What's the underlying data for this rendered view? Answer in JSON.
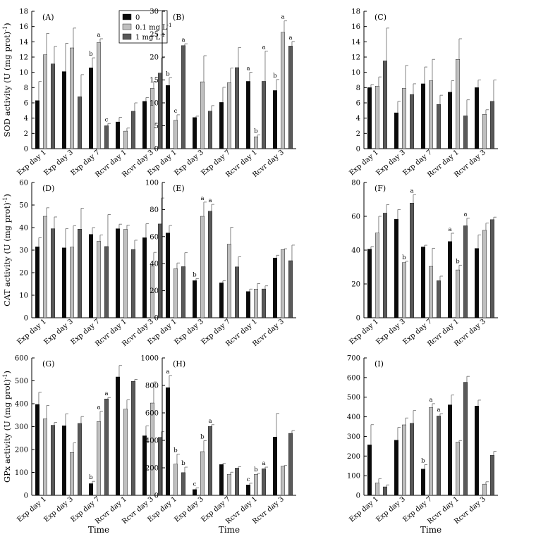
{
  "chart_data": {
    "type": "bar",
    "layout": "3x3 grid",
    "categories": [
      "Exp day 1",
      "Exp day 3",
      "Exp day 7",
      "Rcvr day 1",
      "Rcvr day 3"
    ],
    "x_label": "Time",
    "series": [
      {
        "name": "0",
        "color": "#0a0a0a"
      },
      {
        "name": "0.1 mg L⁻¹",
        "color": "#bfbfbf"
      },
      {
        "name": "1 mg L⁻¹",
        "color": "#595959"
      }
    ],
    "legend": {
      "items": [
        "0",
        "0.1 mg L",
        "1 mg L"
      ],
      "superscript": "-1"
    },
    "y_label_parts": {
      "SOD": {
        "main": "SOD activity (U (mg prot)",
        "sup": "-1",
        "close": ")"
      },
      "CAT": {
        "main": "CAT activity (U (mg prot)",
        "sup": "-1",
        "close": ")"
      },
      "GPx": {
        "main": "GPx activity (U (mg prot)",
        "sup": "-1",
        "close": ")"
      }
    },
    "panels": [
      {
        "label": "(A)",
        "metric": "SOD",
        "ylim": [
          0,
          18
        ],
        "yticks": [
          0,
          2,
          4,
          6,
          8,
          10,
          12,
          14,
          16,
          18
        ],
        "values": [
          [
            6.3,
            12.3,
            11.1
          ],
          [
            10.1,
            13.2,
            6.8
          ],
          [
            10.6,
            13.9,
            3.0
          ],
          [
            3.5,
            2.3,
            4.9
          ],
          [
            6.2,
            7.9,
            9.9
          ]
        ],
        "errors": [
          [
            2.5,
            2.8,
            2.3
          ],
          [
            3.7,
            2.6,
            2.9
          ],
          [
            1.3,
            0.5,
            0.3
          ],
          [
            0.6,
            0.4,
            1.1
          ],
          [
            0.5,
            0.9,
            2.0
          ]
        ],
        "sig": [
          [
            "",
            "",
            ""
          ],
          [
            "",
            "",
            ""
          ],
          [
            "b",
            "a",
            "c"
          ],
          [
            "",
            "",
            ""
          ],
          [
            "",
            "",
            ""
          ]
        ]
      },
      {
        "label": "(B)",
        "metric": "SOD",
        "ylim": [
          0,
          30
        ],
        "yticks": [
          0,
          5,
          10,
          15,
          20,
          25,
          30
        ],
        "values": [
          [
            13.8,
            6.2,
            22.5
          ],
          [
            6.8,
            14.6,
            8.2
          ],
          [
            10.1,
            14.4,
            17.7
          ],
          [
            14.7,
            2.6,
            14.7
          ],
          [
            12.7,
            25.4,
            22.4
          ]
        ],
        "errors": [
          [
            1.7,
            1.2,
            0.4
          ],
          [
            0.3,
            5.7,
            1.2
          ],
          [
            3.3,
            3.2,
            4.4
          ],
          [
            2.0,
            0.4,
            6.6
          ],
          [
            2.4,
            2.5,
            1.0
          ]
        ],
        "sig": [
          [
            "b",
            "c",
            "a"
          ],
          [
            "",
            "",
            ""
          ],
          [
            "",
            "",
            ""
          ],
          [
            "a",
            "b",
            "a"
          ],
          [
            "b",
            "a",
            "a"
          ]
        ]
      },
      {
        "label": "(C)",
        "metric": "SOD",
        "ylim": [
          0,
          18
        ],
        "yticks": [
          0,
          2,
          4,
          6,
          8,
          10,
          12,
          14,
          16,
          18
        ],
        "values": [
          [
            8.0,
            8.2,
            11.5
          ],
          [
            4.7,
            7.9,
            7.1
          ],
          [
            8.5,
            8.9,
            5.8
          ],
          [
            7.4,
            11.7,
            4.3
          ],
          [
            8.0,
            4.5,
            6.2
          ]
        ],
        "errors": [
          [
            0.4,
            1.2,
            4.3
          ],
          [
            1.5,
            3.0,
            1.4
          ],
          [
            2.2,
            2.8,
            1.2
          ],
          [
            1.5,
            2.7,
            2.1
          ],
          [
            1.0,
            0.6,
            2.8
          ]
        ],
        "sig": [
          [
            "",
            "",
            ""
          ],
          [
            "",
            "",
            ""
          ],
          [
            "",
            "",
            ""
          ],
          [
            "",
            "",
            ""
          ],
          [
            "",
            "",
            ""
          ]
        ]
      },
      {
        "label": "(D)",
        "metric": "CAT",
        "ylim": [
          0,
          60
        ],
        "yticks": [
          0,
          10,
          20,
          30,
          40,
          50,
          60
        ],
        "values": [
          [
            31.5,
            45.0,
            39.5
          ],
          [
            31.0,
            31.3,
            39.3
          ],
          [
            37.0,
            33.9,
            31.6
          ],
          [
            39.5,
            39.2,
            30.3
          ],
          [
            35.5,
            23.7,
            41.6
          ]
        ],
        "errors": [
          [
            4.0,
            3.8,
            5.2
          ],
          [
            8.5,
            9.5,
            9.3
          ],
          [
            3.0,
            2.8,
            14.2
          ],
          [
            2.0,
            1.9,
            4.1
          ],
          [
            6.2,
            5.3,
            11.5
          ]
        ],
        "sig": [
          [
            "",
            "",
            ""
          ],
          [
            "",
            "",
            ""
          ],
          [
            "",
            "",
            ""
          ],
          [
            "",
            "",
            ""
          ],
          [
            "",
            "",
            ""
          ]
        ]
      },
      {
        "label": "(E)",
        "metric": "CAT",
        "ylim": [
          0,
          100
        ],
        "yticks": [
          0,
          20,
          40,
          60,
          80,
          100
        ],
        "values": [
          [
            62.7,
            36.2,
            37.8
          ],
          [
            27.5,
            75.0,
            78.8
          ],
          [
            25.8,
            54.4,
            37.6
          ],
          [
            19.4,
            21.2,
            21.3
          ],
          [
            44.2,
            50.4,
            42.2
          ]
        ],
        "errors": [
          [
            5.5,
            4.3,
            10.3
          ],
          [
            1.5,
            10.5,
            5.0
          ],
          [
            1.5,
            12.5,
            7.5
          ],
          [
            1.8,
            4.1,
            2.3
          ],
          [
            2.0,
            0.6,
            11.5
          ]
        ],
        "sig": [
          [
            "",
            "",
            ""
          ],
          [
            "b",
            "a",
            "a"
          ],
          [
            "",
            "",
            ""
          ],
          [
            "",
            "",
            ""
          ],
          [
            "",
            "",
            ""
          ]
        ]
      },
      {
        "label": "(F)",
        "metric": "CAT",
        "ylim": [
          0,
          80
        ],
        "yticks": [
          0,
          20,
          40,
          60,
          80
        ],
        "values": [
          [
            40.6,
            50.1,
            61.9
          ],
          [
            58.3,
            32.6,
            67.8
          ],
          [
            41.9,
            30.4,
            21.9
          ],
          [
            45.1,
            28.3,
            54.4
          ],
          [
            41.0,
            51.7,
            58.0
          ]
        ],
        "errors": [
          [
            1.5,
            9.9,
            5.0
          ],
          [
            5.7,
            0.8,
            5.0
          ],
          [
            1.0,
            10.7,
            2.7
          ],
          [
            4.9,
            2.8,
            4.5
          ],
          [
            8.0,
            4.3,
            1.5
          ]
        ],
        "sig": [
          [
            "",
            "",
            ""
          ],
          [
            "",
            "b",
            "a"
          ],
          [
            "",
            "",
            ""
          ],
          [
            "a",
            "b",
            "a"
          ],
          [
            "",
            "",
            ""
          ]
        ]
      },
      {
        "label": "(G)",
        "metric": "GPx",
        "ylim": [
          0,
          600
        ],
        "yticks": [
          0,
          100,
          200,
          300,
          400,
          500,
          600
        ],
        "values": [
          [
            397,
            334,
            306
          ],
          [
            304,
            187,
            314
          ],
          [
            51,
            322,
            421
          ],
          [
            517,
            376,
            498
          ],
          [
            260,
            403,
            253
          ]
        ],
        "errors": [
          [
            53,
            58,
            12
          ],
          [
            52,
            42,
            30
          ],
          [
            10,
            45,
            6
          ],
          [
            50,
            41,
            8
          ],
          [
            43,
            92,
            25
          ]
        ],
        "sig": [
          [
            "",
            "",
            ""
          ],
          [
            "",
            "",
            ""
          ],
          [
            "b",
            "a",
            "a"
          ],
          [
            "",
            "",
            ""
          ],
          [
            "",
            "",
            ""
          ]
        ]
      },
      {
        "label": "(H)",
        "metric": "GPx",
        "ylim": [
          0,
          1000
        ],
        "yticks": [
          0,
          200,
          400,
          600,
          800,
          1000
        ],
        "values": [
          [
            784,
            227,
            165
          ],
          [
            42,
            318,
            502
          ],
          [
            224,
            153,
            198
          ],
          [
            76,
            152,
            193
          ],
          [
            424,
            212,
            451
          ]
        ],
        "errors": [
          [
            88,
            73,
            40
          ],
          [
            12,
            80,
            12
          ],
          [
            8,
            15,
            10
          ],
          [
            12,
            8,
            12
          ],
          [
            172,
            5,
            20
          ]
        ],
        "sig": [
          [
            "a",
            "b",
            "b"
          ],
          [
            "c",
            "b",
            "a"
          ],
          [
            "",
            "",
            ""
          ],
          [
            "c",
            "b",
            "a"
          ],
          [
            "",
            "",
            ""
          ]
        ]
      },
      {
        "label": "(I)",
        "metric": "GPx",
        "ylim": [
          0,
          700
        ],
        "yticks": [
          0,
          100,
          200,
          300,
          400,
          500,
          600,
          700
        ],
        "values": [
          [
            257,
            63,
            43
          ],
          [
            281,
            359,
            367
          ],
          [
            134,
            447,
            404
          ],
          [
            461,
            271,
            576
          ],
          [
            455,
            57,
            204
          ]
        ],
        "errors": [
          [
            103,
            22,
            10
          ],
          [
            65,
            35,
            65
          ],
          [
            22,
            20,
            12
          ],
          [
            50,
            8,
            30
          ],
          [
            30,
            12,
            20
          ]
        ],
        "sig": [
          [
            "",
            "",
            ""
          ],
          [
            "",
            "",
            ""
          ],
          [
            "b",
            "a",
            "a"
          ],
          [
            "",
            "",
            ""
          ],
          [
            "",
            "",
            ""
          ]
        ]
      }
    ]
  }
}
